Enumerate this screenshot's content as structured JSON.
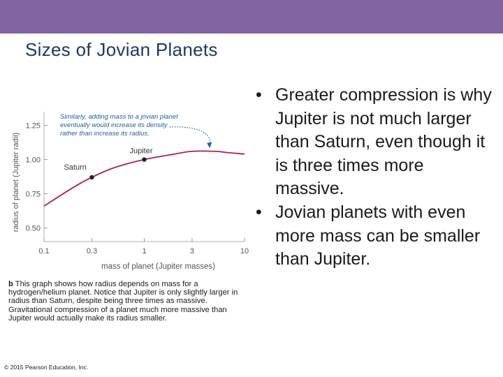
{
  "header": {
    "bar_color": "#8064a2"
  },
  "slide": {
    "title": "Sizes of Jovian Planets"
  },
  "figure": {
    "caption_label": "b",
    "caption_text": "This graph shows how radius depends on mass for a hydrogen/helium planet. Notice that Jupiter is only slightly larger in radius than Saturn, despite being three times as massive. Gravitational compression of a planet much more massive than Jupiter would actually make its radius smaller.",
    "copyright": "© 2015 Pearson Education, Inc."
  },
  "chart_data": {
    "type": "line",
    "xlabel": "mass of planet (Jupiter masses)",
    "ylabel": "radius of planet (Jupiter radii)",
    "x_scale": "log",
    "xlim": [
      0.1,
      10
    ],
    "ylim": [
      0.4,
      1.35
    ],
    "x_ticks": [
      "0.1",
      "0.3",
      "1",
      "3",
      "10"
    ],
    "y_ticks": [
      "0.50",
      "0.75",
      "1.00",
      "1.25"
    ],
    "series": [
      {
        "x": [
          0.1,
          0.2,
          0.3,
          0.5,
          1,
          2,
          3,
          5,
          7,
          10
        ],
        "y": [
          0.66,
          0.8,
          0.87,
          0.94,
          1.0,
          1.04,
          1.06,
          1.06,
          1.05,
          1.04
        ],
        "color": "#a8234a"
      }
    ],
    "points": [
      {
        "label": "Saturn",
        "x": 0.3,
        "y": 0.87
      },
      {
        "label": "Jupiter",
        "x": 1,
        "y": 1.0
      }
    ],
    "annotation": {
      "text_lines": [
        "Similarly, adding mass to a jovian planet",
        "eventually would increase its density",
        "rather than increase its radius."
      ],
      "color": "#1f5f9e",
      "target_x": 4.5,
      "target_y": 1.07
    }
  },
  "bullets": [
    {
      "marker": "•",
      "text": "Greater compression is why Jupiter is not much larger than Saturn, even though it is three times more massive."
    },
    {
      "marker": "•",
      "text": "Jovian planets with even more mass can be smaller than Jupiter."
    }
  ]
}
